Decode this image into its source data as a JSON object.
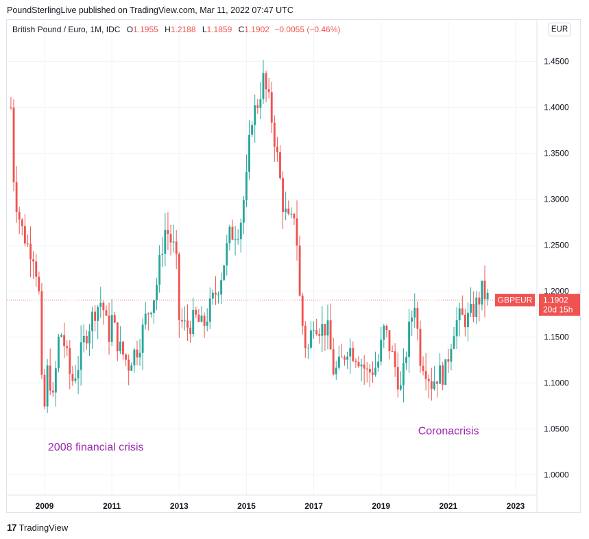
{
  "publisher_line": "PoundSterlingLive published on TradingView.com, Mar 11, 2022 07:47 UTC",
  "legend": {
    "symbol": "British Pound / Euro, 1M, IDC",
    "o_label": "O",
    "o_value": "1.1955",
    "h_label": "H",
    "h_value": "1.2188",
    "l_label": "L",
    "l_value": "1.1859",
    "c_label": "C",
    "c_value": "1.1902",
    "change": "−0.0055 (−0.46%)"
  },
  "currency_button": "EUR",
  "footer": {
    "logo": "17",
    "brand": "TradingView"
  },
  "colors": {
    "up": "#26a69a",
    "down": "#ef5350",
    "annotation": "#9c27b0",
    "grid": "#f0f3fa"
  },
  "chart_data": {
    "type": "candlestick",
    "title": "British Pound / Euro, 1M, IDC",
    "ylim": [
      0.97,
      1.47
    ],
    "y_ticks": [
      "1.4500",
      "1.4000",
      "1.3500",
      "1.3000",
      "1.2500",
      "1.2000",
      "1.1500",
      "1.1000",
      "1.0500",
      "1.0000"
    ],
    "y_tick_values": [
      1.45,
      1.4,
      1.35,
      1.3,
      1.25,
      1.2,
      1.15,
      1.1,
      1.05,
      1.0
    ],
    "x_ticks": [
      "2009",
      "2011",
      "2013",
      "2015",
      "2017",
      "2019",
      "2021",
      "2023"
    ],
    "x_tick_years": [
      2009,
      2011,
      2013,
      2015,
      2017,
      2019,
      2021,
      2023
    ],
    "xlim": [
      2008.0,
      2023.6
    ],
    "last_price": {
      "label": "GBPEUR",
      "value": "1.1902",
      "countdown": "20d 15h",
      "price": 1.1902
    },
    "annotations": [
      {
        "text": "2008 financial crisis",
        "year": 2009.1,
        "price": 1.0265
      },
      {
        "text": "Coronacrisis",
        "year": 2020.1,
        "price": 1.044
      }
    ],
    "anchor_closes": [
      [
        2008.0,
        1.4
      ],
      [
        2008.1,
        1.31
      ],
      [
        2008.3,
        1.27
      ],
      [
        2008.5,
        1.25
      ],
      [
        2008.7,
        1.24
      ],
      [
        2008.85,
        1.19
      ],
      [
        2008.95,
        1.05
      ],
      [
        2009.1,
        1.12
      ],
      [
        2009.25,
        1.08
      ],
      [
        2009.45,
        1.16
      ],
      [
        2009.6,
        1.14
      ],
      [
        2009.8,
        1.1
      ],
      [
        2010.0,
        1.12
      ],
      [
        2010.2,
        1.15
      ],
      [
        2010.4,
        1.17
      ],
      [
        2010.5,
        1.18
      ],
      [
        2010.7,
        1.19
      ],
      [
        2010.9,
        1.15
      ],
      [
        2011.0,
        1.17
      ],
      [
        2011.2,
        1.14
      ],
      [
        2011.5,
        1.12
      ],
      [
        2011.6,
        1.13
      ],
      [
        2011.8,
        1.14
      ],
      [
        2012.0,
        1.17
      ],
      [
        2012.3,
        1.2
      ],
      [
        2012.5,
        1.25
      ],
      [
        2012.6,
        1.27
      ],
      [
        2012.9,
        1.24
      ],
      [
        2013.0,
        1.17
      ],
      [
        2013.2,
        1.16
      ],
      [
        2013.5,
        1.17
      ],
      [
        2013.7,
        1.16
      ],
      [
        2013.9,
        1.18
      ],
      [
        2014.2,
        1.21
      ],
      [
        2014.5,
        1.26
      ],
      [
        2014.8,
        1.27
      ],
      [
        2015.0,
        1.32
      ],
      [
        2015.15,
        1.39
      ],
      [
        2015.3,
        1.4
      ],
      [
        2015.5,
        1.43
      ],
      [
        2015.7,
        1.4
      ],
      [
        2015.9,
        1.35
      ],
      [
        2016.1,
        1.29
      ],
      [
        2016.3,
        1.27
      ],
      [
        2016.45,
        1.29
      ],
      [
        2016.6,
        1.18
      ],
      [
        2016.8,
        1.13
      ],
      [
        2017.0,
        1.17
      ],
      [
        2017.2,
        1.16
      ],
      [
        2017.4,
        1.16
      ],
      [
        2017.6,
        1.11
      ],
      [
        2017.8,
        1.12
      ],
      [
        2018.0,
        1.14
      ],
      [
        2018.3,
        1.13
      ],
      [
        2018.6,
        1.11
      ],
      [
        2018.9,
        1.12
      ],
      [
        2019.1,
        1.16
      ],
      [
        2019.4,
        1.12
      ],
      [
        2019.6,
        1.09
      ],
      [
        2019.8,
        1.15
      ],
      [
        2020.0,
        1.19
      ],
      [
        2020.15,
        1.13
      ],
      [
        2020.3,
        1.12
      ],
      [
        2020.5,
        1.1
      ],
      [
        2020.7,
        1.11
      ],
      [
        2020.9,
        1.11
      ],
      [
        2021.0,
        1.13
      ],
      [
        2021.15,
        1.16
      ],
      [
        2021.3,
        1.17
      ],
      [
        2021.6,
        1.17
      ],
      [
        2021.9,
        1.19
      ],
      [
        2022.0,
        1.2
      ],
      [
        2022.2,
        1.19
      ]
    ]
  }
}
